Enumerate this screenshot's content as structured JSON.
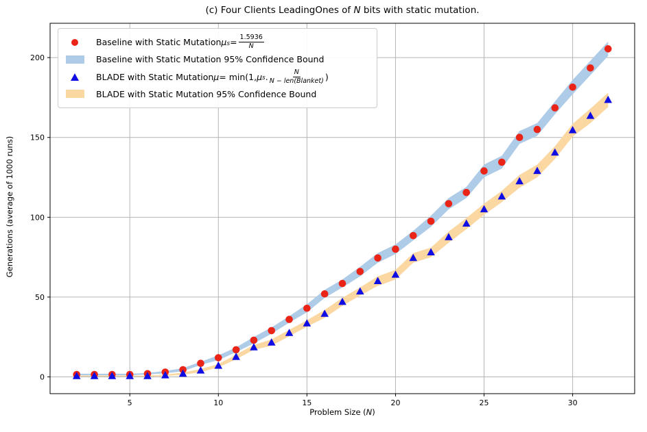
{
  "title": {
    "part1": "(c) Four Clients LeadingOnes of ",
    "part2": "N",
    "part3": " bits with static mutation."
  },
  "axes": {
    "xlabel_part1": "Problem Size (",
    "xlabel_part2": "N",
    "xlabel_part3": ")",
    "ylabel": "Generations (average of 1000 runs)"
  },
  "legend": {
    "items": [
      {
        "marker": "red-circle",
        "prefix": "Baseline with Static Mutation ",
        "mu": "μ",
        "sub": "s",
        "eq": " = ",
        "frac_num": "1.5936",
        "frac_den": "N"
      },
      {
        "marker": "lightblue-patch",
        "label": "Baseline with Static Mutation 95% Confidence Bound"
      },
      {
        "marker": "blue-triangle",
        "prefix": "BLADE with Static Mutation ",
        "mu": "μ",
        "eq": " = min(1, ",
        "mu2": "μ",
        "sub": "s",
        "dot": ".",
        "frac_num": "N",
        "frac_den": "N − len(Blanket)",
        "close": ")"
      },
      {
        "marker": "orange-patch",
        "label": "BLADE with Static Mutation 95% Confidence Bound"
      }
    ]
  },
  "chart_data": {
    "type": "scatter",
    "title": "(c) Four Clients LeadingOnes of N bits with static mutation.",
    "xlabel": "Problem Size (N)",
    "ylabel": "Generations (average of 1000 runs)",
    "x": [
      2,
      3,
      4,
      5,
      6,
      7,
      8,
      9,
      10,
      11,
      12,
      13,
      14,
      15,
      16,
      17,
      18,
      19,
      20,
      21,
      22,
      23,
      24,
      25,
      26,
      27,
      28,
      29,
      30,
      31,
      32
    ],
    "series": [
      {
        "name": "Baseline with Static Mutation μs = 1.5936/N",
        "marker": "circle",
        "color": "#ea2518",
        "band_name": "Baseline with Static Mutation 95% Confidence Bound",
        "band_color": "#aecbe7",
        "values": [
          1.5,
          1.5,
          1.5,
          1.5,
          2,
          3,
          4.5,
          8.5,
          12,
          17,
          23,
          29,
          36,
          43,
          52,
          58.5,
          66,
          74.5,
          80,
          88.5,
          97.5,
          108.5,
          115.5,
          129,
          134.5,
          150,
          155,
          168.5,
          181.5,
          193.5,
          205.5
        ],
        "ci_half_width": [
          0.5,
          0.5,
          0.5,
          0.5,
          0.5,
          0.7,
          1,
          1,
          1.5,
          1.5,
          2,
          2,
          2,
          2.5,
          2.5,
          2.5,
          3,
          3,
          3,
          3,
          3.5,
          3.5,
          3.5,
          4,
          4,
          4,
          4,
          4,
          4.5,
          4.5,
          4.5
        ]
      },
      {
        "name": "BLADE with Static Mutation μ = min(1, μs.N/(N − len(Blanket)))",
        "marker": "triangle",
        "color": "#0f0de4",
        "band_name": "BLADE with Static Mutation 95% Confidence Bound",
        "band_color": "#fbd7a1",
        "values": [
          0.5,
          0.5,
          0.5,
          0.5,
          0.5,
          1,
          2,
          4,
          7,
          12.5,
          18.5,
          21.5,
          27.5,
          33.5,
          39.5,
          47,
          53.5,
          60,
          64,
          74.5,
          78,
          87.5,
          96,
          105,
          113,
          122.5,
          129,
          140.5,
          154.5,
          163.5,
          173.5
        ],
        "ci_half_width": [
          0.3,
          0.3,
          0.3,
          0.3,
          0.3,
          0.5,
          0.7,
          1,
          1,
          1.5,
          1.5,
          2,
          2,
          2,
          2.5,
          2.5,
          2.5,
          3,
          3,
          3,
          3,
          3.5,
          3.5,
          3.5,
          3.5,
          4,
          4,
          4,
          4,
          4.5,
          4.5
        ]
      }
    ],
    "xlim": [
      0.5,
      33.5
    ],
    "ylim": [
      -10.5,
      221.5
    ],
    "x_ticks": [
      5,
      10,
      15,
      20,
      25,
      30
    ],
    "y_ticks": [
      0,
      50,
      100,
      150,
      200
    ],
    "grid": true,
    "grid_color": "#b4b4b4",
    "legend_position": "upper left"
  }
}
